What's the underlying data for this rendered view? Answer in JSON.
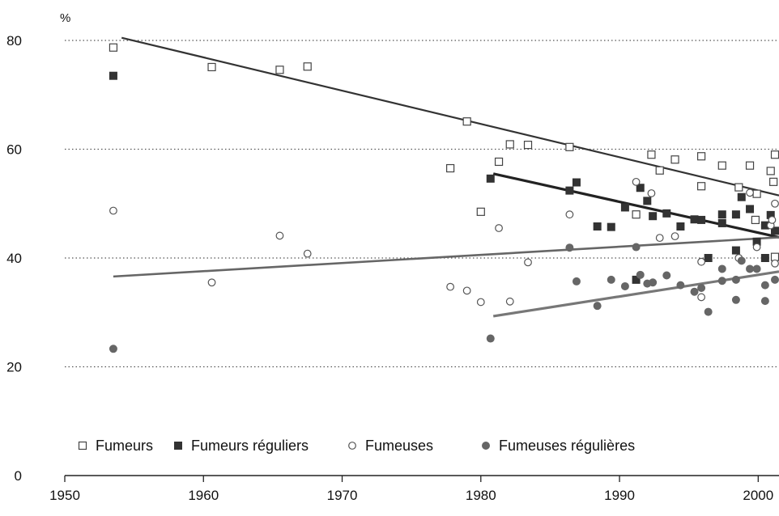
{
  "chart_data": {
    "type": "scatter",
    "title": "",
    "xlabel": "",
    "ylabel": "",
    "y_unit_label": "%",
    "xlim": [
      1950,
      2001.5
    ],
    "ylim": [
      0,
      80
    ],
    "x_ticks": [
      1950,
      1960,
      1970,
      1980,
      1990,
      2000
    ],
    "y_ticks": [
      0,
      20,
      40,
      60,
      80
    ],
    "x_tick_labels": [
      "1950",
      "1960",
      "1970",
      "1980",
      "1990",
      "2000"
    ],
    "y_tick_labels": [
      "0",
      "20",
      "40",
      "60",
      "80"
    ],
    "grid": "horizontal dotted",
    "legend_position": "bottom-left",
    "series": [
      {
        "name": "Fumeurs",
        "marker": "open-square",
        "color": "#444444",
        "points": [
          [
            1953.5,
            78.7
          ],
          [
            1960.6,
            75.1
          ],
          [
            1965.5,
            74.6
          ],
          [
            1967.5,
            75.2
          ],
          [
            1977.8,
            56.5
          ],
          [
            1979,
            65.1
          ],
          [
            1980,
            48.5
          ],
          [
            1981.3,
            57.7
          ],
          [
            1982.1,
            60.9
          ],
          [
            1983.4,
            60.8
          ],
          [
            1986.4,
            60.4
          ],
          [
            1991.2,
            48
          ],
          [
            1992.3,
            59
          ],
          [
            1992.9,
            56.1
          ],
          [
            1994,
            58.1
          ],
          [
            1995.9,
            58.7
          ],
          [
            1995.9,
            53.2
          ],
          [
            1997.4,
            57
          ],
          [
            1998.6,
            53
          ],
          [
            1999.4,
            57
          ],
          [
            1999.8,
            47
          ],
          [
            1999.9,
            51.8
          ],
          [
            2000.9,
            56
          ],
          [
            2001.1,
            54
          ],
          [
            2001.5,
            59
          ],
          [
            2001.5,
            40.2
          ]
        ],
        "trend": [
          [
            1954.1,
            80.5
          ],
          [
            2001.5,
            51.5
          ]
        ],
        "trend_color": "#333333"
      },
      {
        "name": "Fumeurs réguliers",
        "marker": "filled-square",
        "color": "#333333",
        "points": [
          [
            1953.5,
            73.5
          ],
          [
            1980.7,
            54.6
          ],
          [
            1986.4,
            52.4
          ],
          [
            1986.9,
            53.9
          ],
          [
            1988.4,
            45.8
          ],
          [
            1989.4,
            45.7
          ],
          [
            1990.4,
            49.3
          ],
          [
            1991.2,
            36
          ],
          [
            1991.5,
            52.9
          ],
          [
            1992,
            50.5
          ],
          [
            1992.4,
            47.7
          ],
          [
            1993.4,
            48.2
          ],
          [
            1994.4,
            45.8
          ],
          [
            1995.4,
            47.1
          ],
          [
            1995.9,
            47
          ],
          [
            1996.4,
            40
          ],
          [
            1997.4,
            48
          ],
          [
            1997.4,
            46.4
          ],
          [
            1998.4,
            48
          ],
          [
            1998.4,
            41.4
          ],
          [
            1998.8,
            51.2
          ],
          [
            1999.4,
            49
          ],
          [
            1999.9,
            43
          ],
          [
            2000.5,
            46
          ],
          [
            2000.5,
            40
          ],
          [
            2000.9,
            47.9
          ],
          [
            2001.4,
            45
          ]
        ],
        "trend": [
          [
            1980.9,
            55.5
          ],
          [
            2001.5,
            43.8
          ]
        ],
        "trend_color": "#222222"
      },
      {
        "name": "Fumeuses",
        "marker": "open-circle",
        "color": "#555555",
        "points": [
          [
            1953.5,
            48.7
          ],
          [
            1960.6,
            35.5
          ],
          [
            1965.5,
            44.1
          ],
          [
            1967.5,
            40.8
          ],
          [
            1977.8,
            34.7
          ],
          [
            1979,
            34
          ],
          [
            1980,
            31.9
          ],
          [
            1981.3,
            45.5
          ],
          [
            1982.1,
            32
          ],
          [
            1983.4,
            39.2
          ],
          [
            1986.4,
            48
          ],
          [
            1991.2,
            54
          ],
          [
            1992.3,
            51.9
          ],
          [
            1992.9,
            43.7
          ],
          [
            1994,
            44
          ],
          [
            1995.9,
            39.3
          ],
          [
            1995.9,
            32.8
          ],
          [
            1998.6,
            40
          ],
          [
            1999.4,
            52
          ],
          [
            1999.9,
            42
          ],
          [
            2000.9,
            46
          ],
          [
            2001,
            47
          ],
          [
            2001.4,
            50
          ],
          [
            2001.5,
            39
          ]
        ],
        "trend": [
          [
            1953.5,
            36.6
          ],
          [
            2001.5,
            43.8
          ]
        ],
        "trend_color": "#666666"
      },
      {
        "name": "Fumeuses régulières",
        "marker": "filled-circle",
        "color": "#666666",
        "points": [
          [
            1953.5,
            23.3
          ],
          [
            1980.7,
            25.2
          ],
          [
            1986.4,
            41.9
          ],
          [
            1986.9,
            35.7
          ],
          [
            1988.4,
            31.2
          ],
          [
            1989.4,
            36
          ],
          [
            1990.4,
            34.8
          ],
          [
            1991.2,
            42
          ],
          [
            1991.5,
            36.9
          ],
          [
            1992,
            35.3
          ],
          [
            1992.4,
            35.5
          ],
          [
            1993.4,
            36.8
          ],
          [
            1994.4,
            35
          ],
          [
            1995.4,
            33.8
          ],
          [
            1995.9,
            34.5
          ],
          [
            1996.4,
            30.1
          ],
          [
            1997.4,
            38
          ],
          [
            1997.4,
            35.8
          ],
          [
            1998.4,
            36
          ],
          [
            1998.4,
            32.3
          ],
          [
            1998.8,
            39.5
          ],
          [
            1999.4,
            38
          ],
          [
            1999.9,
            38
          ],
          [
            2000.5,
            35
          ],
          [
            2000.5,
            32.1
          ],
          [
            2001.4,
            36
          ]
        ],
        "trend": [
          [
            1980.9,
            29.3
          ],
          [
            2001.5,
            37.5
          ]
        ],
        "trend_color": "#777777"
      }
    ]
  }
}
